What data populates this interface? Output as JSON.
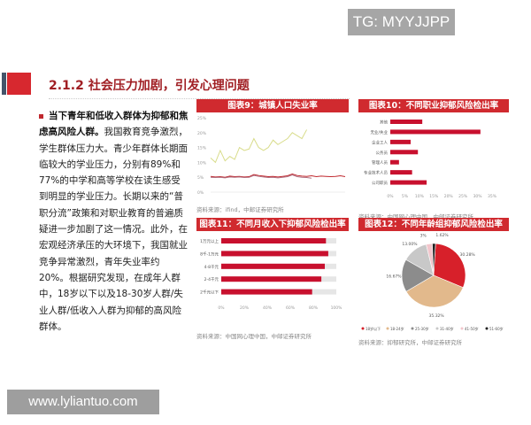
{
  "watermark_top": "TG: MYYJJPP",
  "watermark_bottom": "www.lyliantuo.com",
  "title": "2.1.2 社会压力加剧，引发心理问题",
  "body": {
    "bold": "当下青年和低收入群体为抑郁和焦虑高风险人群。",
    "text": "我国教育竞争激烈，学生群体压力大。青少年群体长期面临较大的学业压力，分别有89%和77%的中学和高等学校在读生感受到明显的学业压力。长期以来的“普职分流”政策和对职业教育的普遍质疑进一步加剧了这一情况。此外，在宏观经济承压的大环境下，我国就业竞争异常激烈，青年失业率约20%。根据研究发现，在成年人群中，18岁以下以及18-30岁人群/失业人群/低收入人群为抑郁的高风险群体。"
  },
  "colors": {
    "accent": "#d02a2f",
    "title": "#a01e23"
  },
  "chart_data": [
    {
      "type": "line",
      "title": "图表9：城镇人口失业率",
      "source": "资料来源：ifind，中邮证券研究所",
      "ylim": [
        0,
        25
      ],
      "yticks": [
        "0%",
        "5%",
        "10%",
        "15%",
        "20%",
        "25%"
      ],
      "series": [
        {
          "color": "#d8dc8a",
          "values": [
            11.5,
            10,
            14,
            10.5,
            12,
            11,
            15,
            14,
            14.5,
            18,
            15,
            14,
            15,
            17.5,
            16,
            17,
            18,
            20,
            19,
            18,
            21
          ]
        },
        {
          "color": "#c0282e",
          "values": [
            5.3,
            5.1,
            5.2,
            5.0,
            5.4,
            5.2,
            5.3,
            5.1,
            5.2,
            5.9,
            5.6,
            5.4,
            5.2,
            5.3,
            5.1,
            5.3,
            5.5,
            6.1,
            5.6,
            5.4,
            5.3,
            5.5,
            5.2,
            5.4,
            5.3,
            5.2,
            5.3,
            5.5,
            5.2
          ]
        },
        {
          "color": "#b07080",
          "values": [
            5.0,
            4.9,
            5.0,
            4.8,
            5.1,
            5.0,
            5.1,
            4.9,
            5.0,
            5.6,
            5.3,
            5.1,
            4.9,
            5.0,
            4.8,
            5.0,
            5.2,
            5.8,
            5.2,
            5.0,
            4.9,
            4.7
          ]
        }
      ]
    },
    {
      "type": "bar",
      "title": "图表10：不同职业抑郁风险检出率",
      "source": "资料来源：中国网心理中国，中邮证券研究所",
      "xlim": [
        0,
        35
      ],
      "xticks": [
        "0%",
        "5%",
        "10%",
        "15%",
        "20%",
        "25%",
        "30%",
        "35%"
      ],
      "categories": [
        "其他",
        "无业/失业",
        "企业工人",
        "公务员",
        "管理人员",
        "专业技术人员",
        "公司职员"
      ],
      "values": [
        11,
        31,
        7,
        9.5,
        3,
        7.5,
        12.5
      ]
    },
    {
      "type": "bar",
      "title": "图表11：不同月收入下抑郁风险检出率",
      "source": "资料来源：中国网心理中国，中邮证券研究所",
      "xlim": [
        0,
        100
      ],
      "xticks": [
        "0%",
        "20%",
        "40%",
        "60%",
        "80%",
        "100%"
      ],
      "categories": [
        "1万元以上",
        "8千-1万元",
        "4-8千元",
        "2-4千元",
        "2千元以下"
      ],
      "values": [
        91,
        93,
        90,
        87,
        79
      ]
    },
    {
      "type": "pie",
      "title": "图表12：不同年龄组抑郁风险检出率",
      "source": "资料来源：抑郁研究所，中邮证券研究所",
      "categories": [
        "18岁以下",
        "18-24岁",
        "25-30岁",
        "31-40岁",
        "41-50岁",
        "51-60岁"
      ],
      "values": [
        30.28,
        35.32,
        16.67,
        13.0,
        3.11,
        1.62
      ],
      "labels": [
        "30.28%",
        "35.32%",
        "16.67%",
        "13.00%",
        "3%",
        "1.62%"
      ],
      "colors": [
        "#d7202a",
        "#e2b98c",
        "#8c8c8c",
        "#c8c8c8",
        "#f2c6cc",
        "#222222"
      ]
    }
  ]
}
